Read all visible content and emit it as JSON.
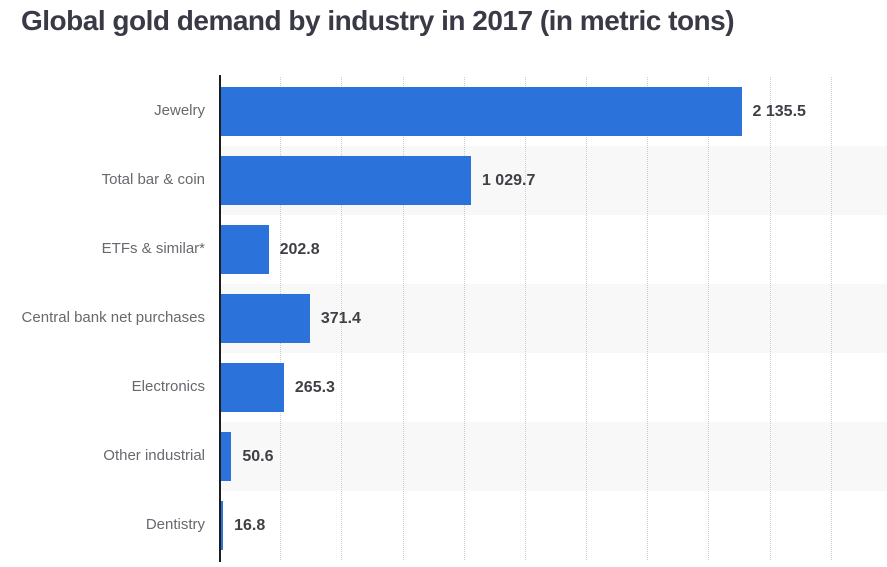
{
  "colors": {
    "bar": "#2b72da",
    "band": "#f8f8f8",
    "grid": "#cccccc",
    "axis": "#1d1d1d",
    "title": "#3a3a47",
    "category_label": "#68686f",
    "value_label": "#3f3f46"
  },
  "chart_data": {
    "type": "bar",
    "orientation": "horizontal",
    "title": "Global gold demand by industry in 2017 (in metric tons)",
    "categories": [
      "Jewelry",
      "Total bar & coin",
      "ETFs & similar*",
      "Central bank net purchases",
      "Electronics",
      "Other industrial",
      "Dentistry"
    ],
    "values": [
      2135.5,
      1029.7,
      202.8,
      371.4,
      265.3,
      50.6,
      16.8
    ],
    "value_labels": [
      "2 135.5",
      "1 029.7",
      "202.8",
      "371.4",
      "265.3",
      "50.6",
      "16.8"
    ],
    "xlabel": "",
    "ylabel": "",
    "xlim": [
      0,
      2730
    ],
    "gridline_step": 250,
    "grid": "dotted-vertical",
    "legend": "none",
    "row_banding": "alternate-starting-second-row"
  }
}
